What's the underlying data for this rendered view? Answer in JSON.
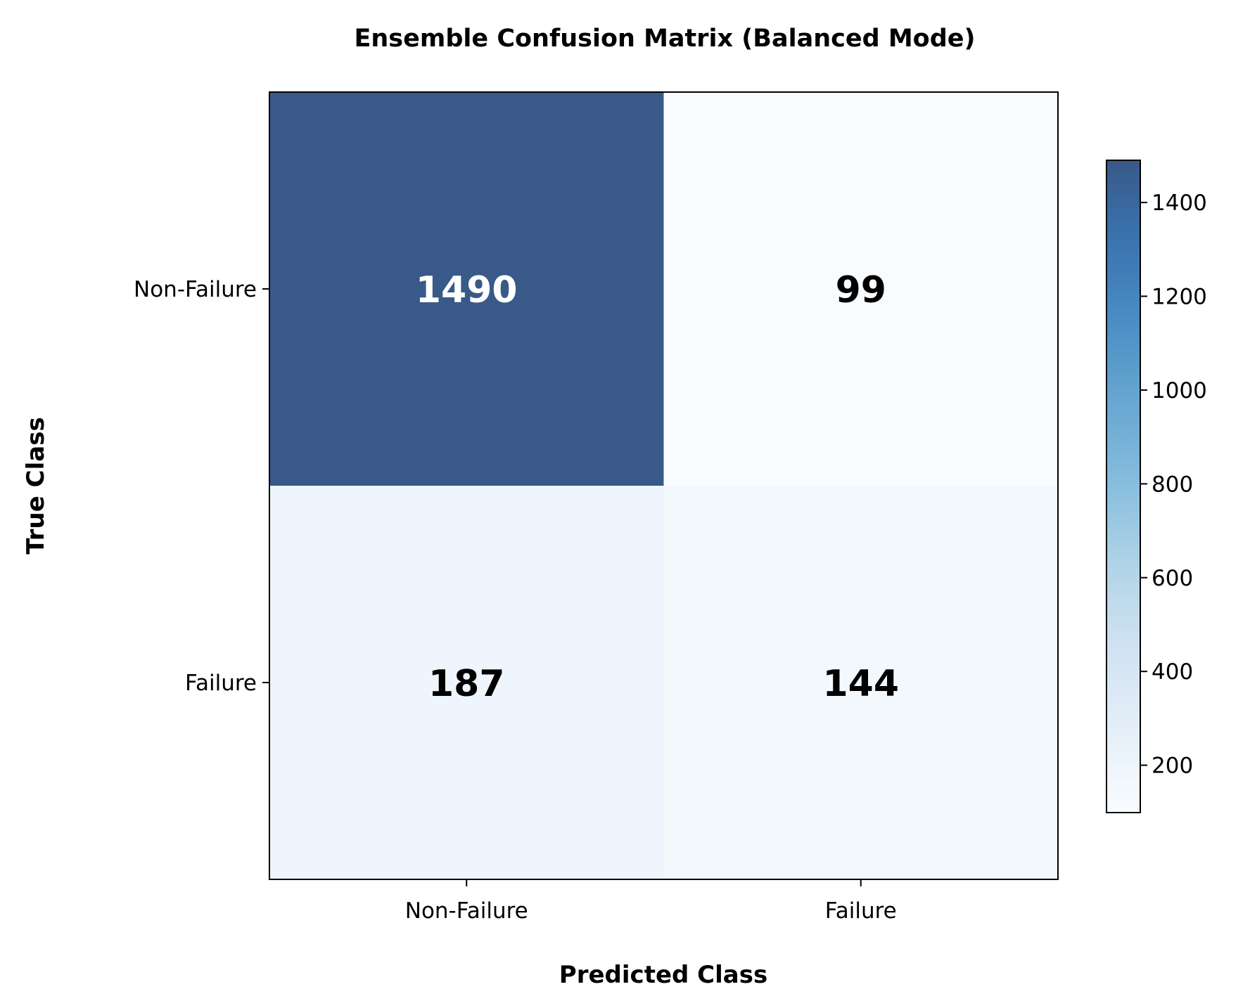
{
  "chart_data": {
    "type": "heatmap",
    "title": "Ensemble Confusion Matrix (Balanced Mode)",
    "xlabel": "Predicted Class",
    "ylabel": "True Class",
    "x_categories": [
      "Non-Failure",
      "Failure"
    ],
    "y_categories": [
      "Non-Failure",
      "Failure"
    ],
    "matrix": [
      [
        1490,
        99
      ],
      [
        187,
        144
      ]
    ],
    "colorbar": {
      "range": [
        99,
        1490
      ],
      "ticks": [
        200,
        400,
        600,
        800,
        1000,
        1200,
        1400
      ],
      "colormap": "Blues",
      "cell_alpha": 0.8
    },
    "colors": {
      "text_dark": "#000000",
      "text_light": "#ffffff",
      "frame": "#000000"
    }
  }
}
